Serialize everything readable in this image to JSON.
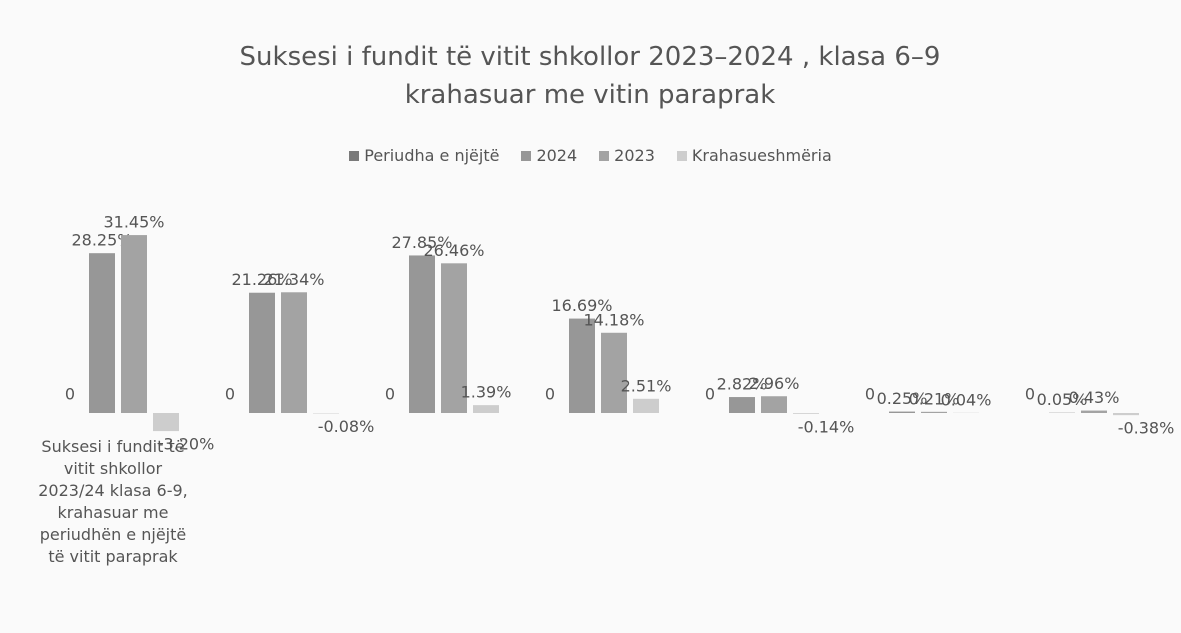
{
  "chart_data": {
    "type": "bar",
    "title": "Suksesi i fundit të vitit shkollor 2023–2024 , klasa 6–9 krahasuar me vitin paraprak",
    "categories": [
      "Suksesi i fundit të vitit shkollor 2023/24 klasa 6-9, krahasuar me periudhën e njëjtë të vitit paraprak",
      null,
      null,
      null,
      null,
      null,
      null
    ],
    "series": [
      {
        "name": "Periudha e njëjtë",
        "color": "#7a7a7a",
        "values": [
          0,
          0,
          0,
          0,
          0,
          0,
          0
        ]
      },
      {
        "name": "2024",
        "color": "#979797",
        "values": [
          28.25,
          21.26,
          27.85,
          16.69,
          2.82,
          0.25,
          0.05
        ],
        "value_labels": [
          "28.25%",
          "21.26%",
          "27.85%",
          "16.69%",
          "2.82%",
          "0.25%",
          "0.05%"
        ]
      },
      {
        "name": "2023",
        "color": "#a3a3a3",
        "values": [
          31.45,
          21.34,
          26.46,
          14.18,
          2.96,
          0.21,
          0.43
        ],
        "value_labels": [
          "31.45%",
          "21.34%",
          "26.46%",
          "14.18%",
          "2.96%",
          "0.21%",
          "0.43%"
        ]
      },
      {
        "name": "Krahasueshmëria",
        "color": "#cdcdcd",
        "values": [
          -3.2,
          -0.08,
          1.39,
          2.51,
          -0.14,
          0.04,
          -0.38
        ],
        "value_labels": [
          "-3.20%",
          "-0.08%",
          "1.39%",
          "2.51%",
          "-0.14%",
          "0.04%",
          "-0.38%"
        ]
      }
    ],
    "ylim": [
      -35,
      35
    ],
    "legend": "top"
  }
}
